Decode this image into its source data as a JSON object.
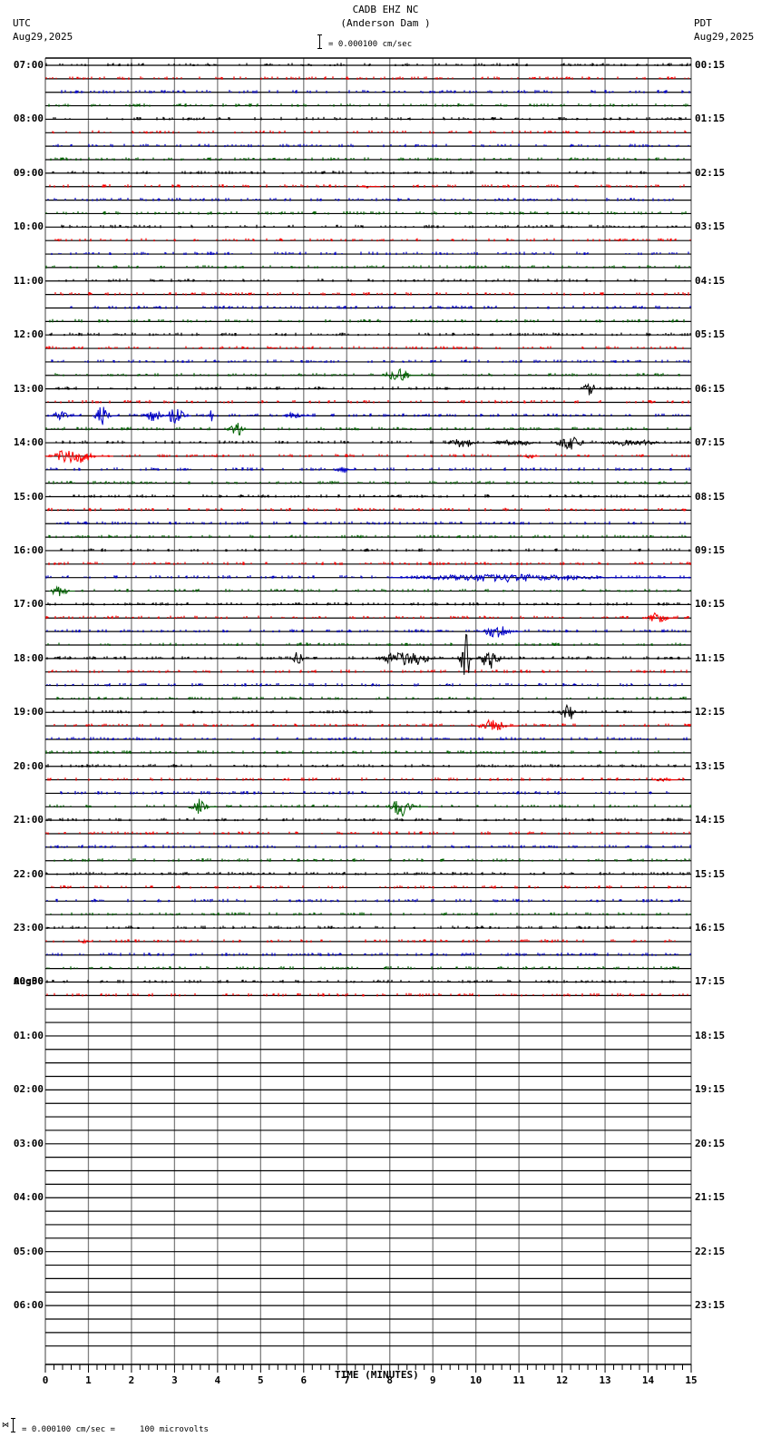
{
  "header": {
    "station": "CADB EHZ NC",
    "location": "(Anderson Dam )",
    "scale_text": "= 0.000100 cm/sec",
    "left_tz": "UTC",
    "left_date": "Aug29,2025",
    "right_tz": "PDT",
    "right_date": "Aug29,2025"
  },
  "footer": {
    "scale_text": "= 0.000100 cm/sec =     100 microvolts",
    "xlabel": "TIME (MINUTES)"
  },
  "colors": {
    "black": "#000000",
    "red": "#ff0000",
    "blue": "#0000cc",
    "green": "#006400",
    "grid": "#808080"
  },
  "chart_data": {
    "type": "helicorder",
    "title": "CADB EHZ NC (Anderson Dam )",
    "xlabel": "TIME (MINUTES)",
    "x_ticks": [
      0,
      1,
      2,
      3,
      4,
      5,
      6,
      7,
      8,
      9,
      10,
      11,
      12,
      13,
      14,
      15
    ],
    "xlim": [
      0,
      15
    ],
    "rows_per_hour": 4,
    "row_minutes": 15,
    "total_rows": 96,
    "data_rows": 70,
    "row_color_cycle": [
      "black",
      "red",
      "blue",
      "green"
    ],
    "left_labels": [
      "07:00",
      "08:00",
      "09:00",
      "10:00",
      "11:00",
      "12:00",
      "13:00",
      "14:00",
      "15:00",
      "16:00",
      "17:00",
      "18:00",
      "19:00",
      "20:00",
      "21:00",
      "22:00",
      "23:00",
      "00:00",
      "01:00",
      "02:00",
      "03:00",
      "04:00",
      "05:00",
      "06:00"
    ],
    "left_date_change": {
      "row": 68,
      "label": "Aug30"
    },
    "right_labels": [
      "00:15",
      "01:15",
      "02:15",
      "03:15",
      "04:15",
      "05:15",
      "06:15",
      "07:15",
      "08:15",
      "09:15",
      "10:15",
      "11:15",
      "12:15",
      "13:15",
      "14:15",
      "15:15",
      "16:15",
      "17:15",
      "18:15",
      "19:15",
      "20:15",
      "21:15",
      "22:15",
      "23:15"
    ],
    "events": [
      {
        "row": 9,
        "start": 7.3,
        "dur": 0.5,
        "amp": 2
      },
      {
        "row": 23,
        "start": 7.8,
        "dur": 1.0,
        "amp": 8
      },
      {
        "row": 24,
        "start": 12.4,
        "dur": 0.6,
        "amp": 8
      },
      {
        "row": 26,
        "start": 0.1,
        "dur": 0.7,
        "amp": 6
      },
      {
        "row": 26,
        "start": 1.1,
        "dur": 0.6,
        "amp": 14
      },
      {
        "row": 26,
        "start": 2.3,
        "dur": 0.6,
        "amp": 10
      },
      {
        "row": 26,
        "start": 2.8,
        "dur": 0.6,
        "amp": 14
      },
      {
        "row": 26,
        "start": 3.8,
        "dur": 0.1,
        "amp": 20
      },
      {
        "row": 26,
        "start": 5.5,
        "dur": 0.7,
        "amp": 4
      },
      {
        "row": 27,
        "start": 4.2,
        "dur": 0.6,
        "amp": 8
      },
      {
        "row": 28,
        "start": 9.3,
        "dur": 1.0,
        "amp": 7
      },
      {
        "row": 28,
        "start": 10.3,
        "dur": 1.5,
        "amp": 4
      },
      {
        "row": 28,
        "start": 11.8,
        "dur": 1.0,
        "amp": 8
      },
      {
        "row": 28,
        "start": 12.8,
        "dur": 2.2,
        "amp": 4
      },
      {
        "row": 29,
        "start": 0.0,
        "dur": 1.6,
        "amp": 9
      },
      {
        "row": 29,
        "start": 11.1,
        "dur": 0.4,
        "amp": 3
      },
      {
        "row": 30,
        "start": 6.7,
        "dur": 0.5,
        "amp": 4
      },
      {
        "row": 38,
        "start": 8.0,
        "dur": 7.0,
        "amp": 5
      },
      {
        "row": 39,
        "start": 0.1,
        "dur": 0.6,
        "amp": 9
      },
      {
        "row": 41,
        "start": 13.9,
        "dur": 0.8,
        "amp": 9
      },
      {
        "row": 42,
        "start": 10.1,
        "dur": 1.0,
        "amp": 9
      },
      {
        "row": 44,
        "start": 5.7,
        "dur": 0.4,
        "amp": 9
      },
      {
        "row": 44,
        "start": 7.6,
        "dur": 2.0,
        "amp": 9
      },
      {
        "row": 44,
        "start": 9.6,
        "dur": 0.4,
        "amp": 32
      },
      {
        "row": 44,
        "start": 10.0,
        "dur": 0.8,
        "amp": 12
      },
      {
        "row": 48,
        "start": 11.9,
        "dur": 0.6,
        "amp": 10
      },
      {
        "row": 49,
        "start": 10.0,
        "dur": 1.0,
        "amp": 8
      },
      {
        "row": 53,
        "start": 5.5,
        "dur": 0.2,
        "amp": 2
      },
      {
        "row": 53,
        "start": 14.1,
        "dur": 0.6,
        "amp": 2
      },
      {
        "row": 55,
        "start": 3.3,
        "dur": 0.7,
        "amp": 11
      },
      {
        "row": 55,
        "start": 7.9,
        "dur": 1.0,
        "amp": 11
      },
      {
        "row": 65,
        "start": 0.8,
        "dur": 0.3,
        "amp": 3
      }
    ]
  }
}
